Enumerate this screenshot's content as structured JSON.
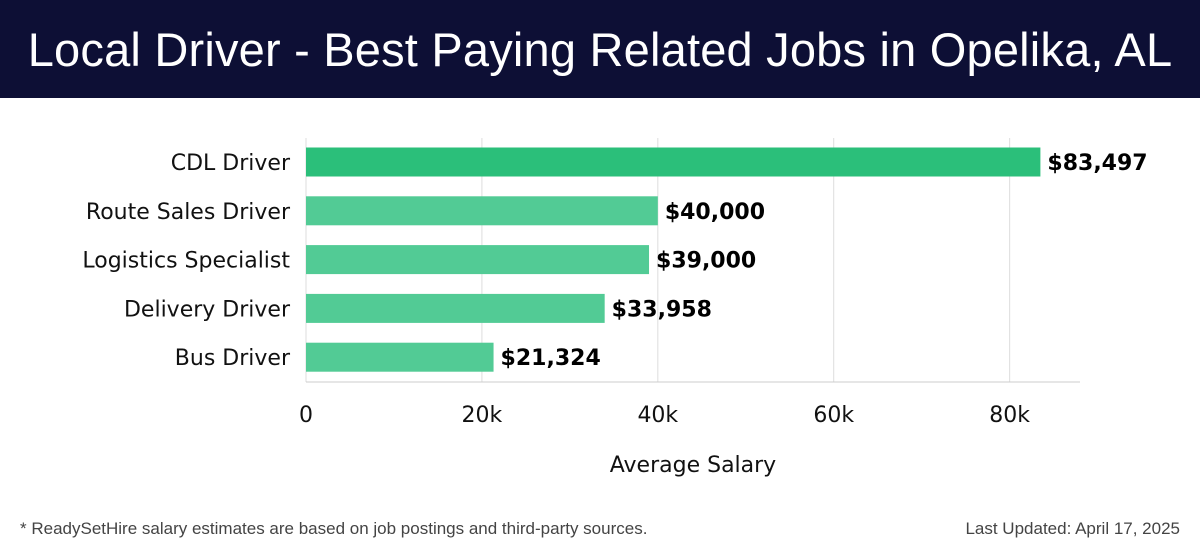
{
  "title": "Local Driver - Best Paying Related Jobs in Opelika, AL",
  "footer": {
    "note": "* ReadySetHire salary estimates are based on job postings and third-party sources.",
    "updated": "Last Updated: April 17, 2025"
  },
  "colors": {
    "header_bg": "#0d0f35",
    "top_bar": "#2bbf7a",
    "bar": "#52cb95",
    "grid": "#dddddd"
  },
  "chart_data": {
    "type": "bar",
    "orientation": "horizontal",
    "categories": [
      "CDL Driver",
      "Route Sales Driver",
      "Logistics Specialist",
      "Delivery Driver",
      "Bus Driver"
    ],
    "values": [
      83497,
      40000,
      39000,
      33958,
      21324
    ],
    "value_labels": [
      "$83,497",
      "$40,000",
      "$39,000",
      "$33,958",
      "$21,324"
    ],
    "xlabel": "Average Salary",
    "ylabel": "",
    "xlim": [
      0,
      88000
    ],
    "xticks": [
      0,
      20000,
      40000,
      60000,
      80000
    ],
    "xtick_labels": [
      "0",
      "20k",
      "40k",
      "60k",
      "80k"
    ],
    "grid": true
  }
}
